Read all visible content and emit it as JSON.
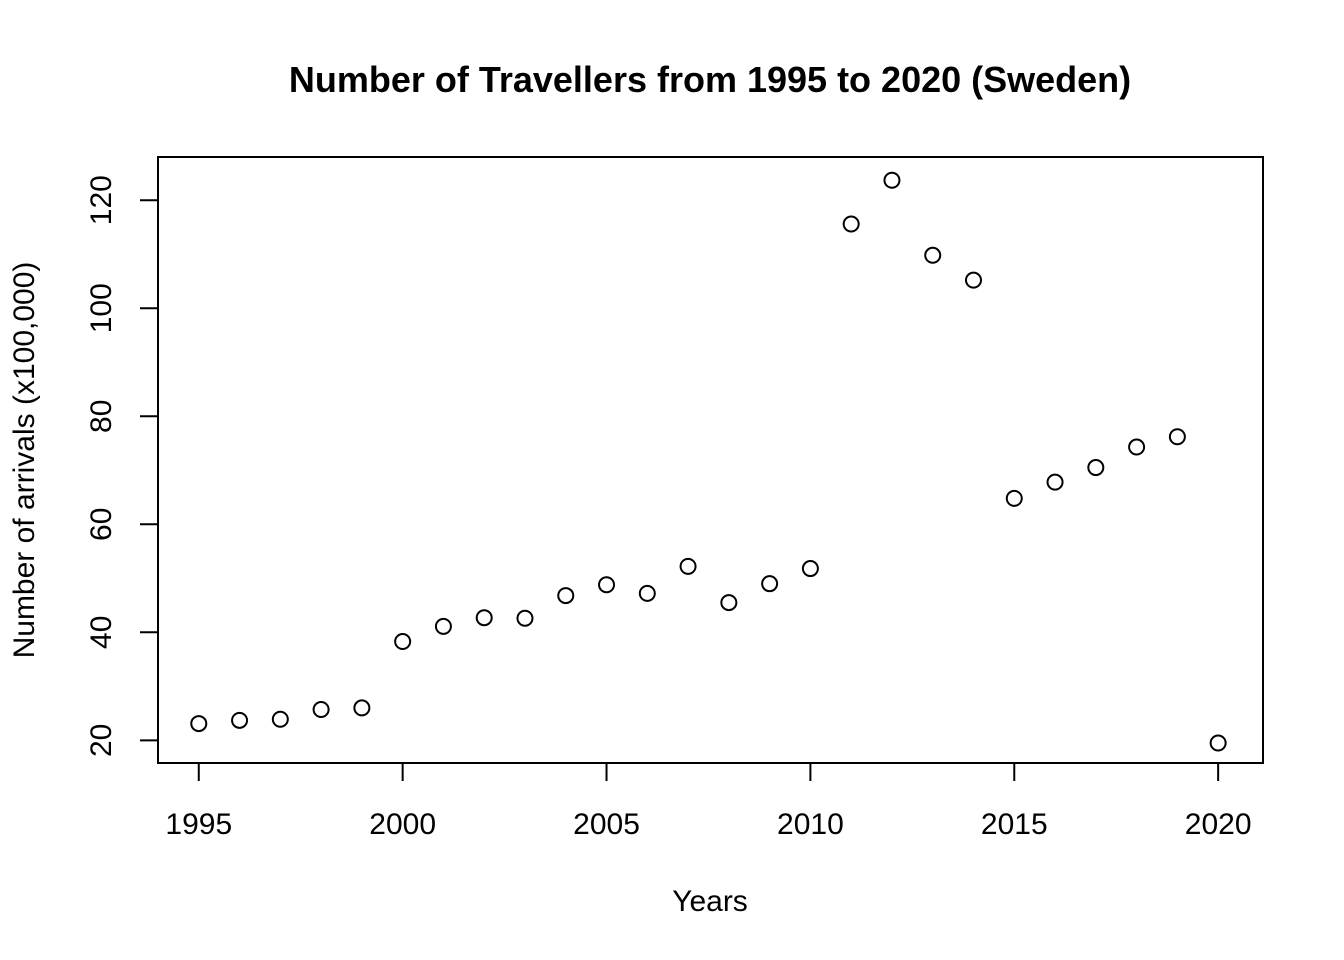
{
  "chart_data": {
    "type": "scatter",
    "title": "Number of Travellers from 1995 to 2020 (Sweden)",
    "xlabel": "Years",
    "ylabel": "Number of arrivals (x100,000)",
    "x": [
      1995,
      1996,
      1997,
      1998,
      1999,
      2000,
      2001,
      2002,
      2003,
      2004,
      2005,
      2006,
      2007,
      2008,
      2009,
      2010,
      2011,
      2012,
      2013,
      2014,
      2015,
      2016,
      2017,
      2018,
      2019,
      2020
    ],
    "y": [
      23.1,
      23.7,
      23.9,
      25.7,
      26.0,
      38.3,
      41.1,
      42.7,
      42.6,
      46.8,
      48.8,
      47.2,
      52.2,
      45.5,
      49.0,
      51.8,
      115.6,
      123.7,
      109.8,
      105.2,
      64.8,
      67.8,
      70.5,
      74.3,
      76.2,
      19.5
    ],
    "xlim": [
      1994,
      2021.1
    ],
    "ylim": [
      15.8,
      128
    ],
    "x_ticks": [
      1995,
      2000,
      2005,
      2010,
      2015,
      2020
    ],
    "x_tick_labels": [
      "1995",
      "2000",
      "2005",
      "2010",
      "2015",
      "2020"
    ],
    "y_ticks": [
      20,
      40,
      60,
      80,
      100,
      120
    ],
    "y_tick_labels": [
      "20",
      "40",
      "60",
      "80",
      "100",
      "120"
    ],
    "grid": false,
    "marker": "open-circle",
    "colors": {
      "marker": "#000000",
      "axes": "#000000",
      "background": "#ffffff"
    }
  }
}
